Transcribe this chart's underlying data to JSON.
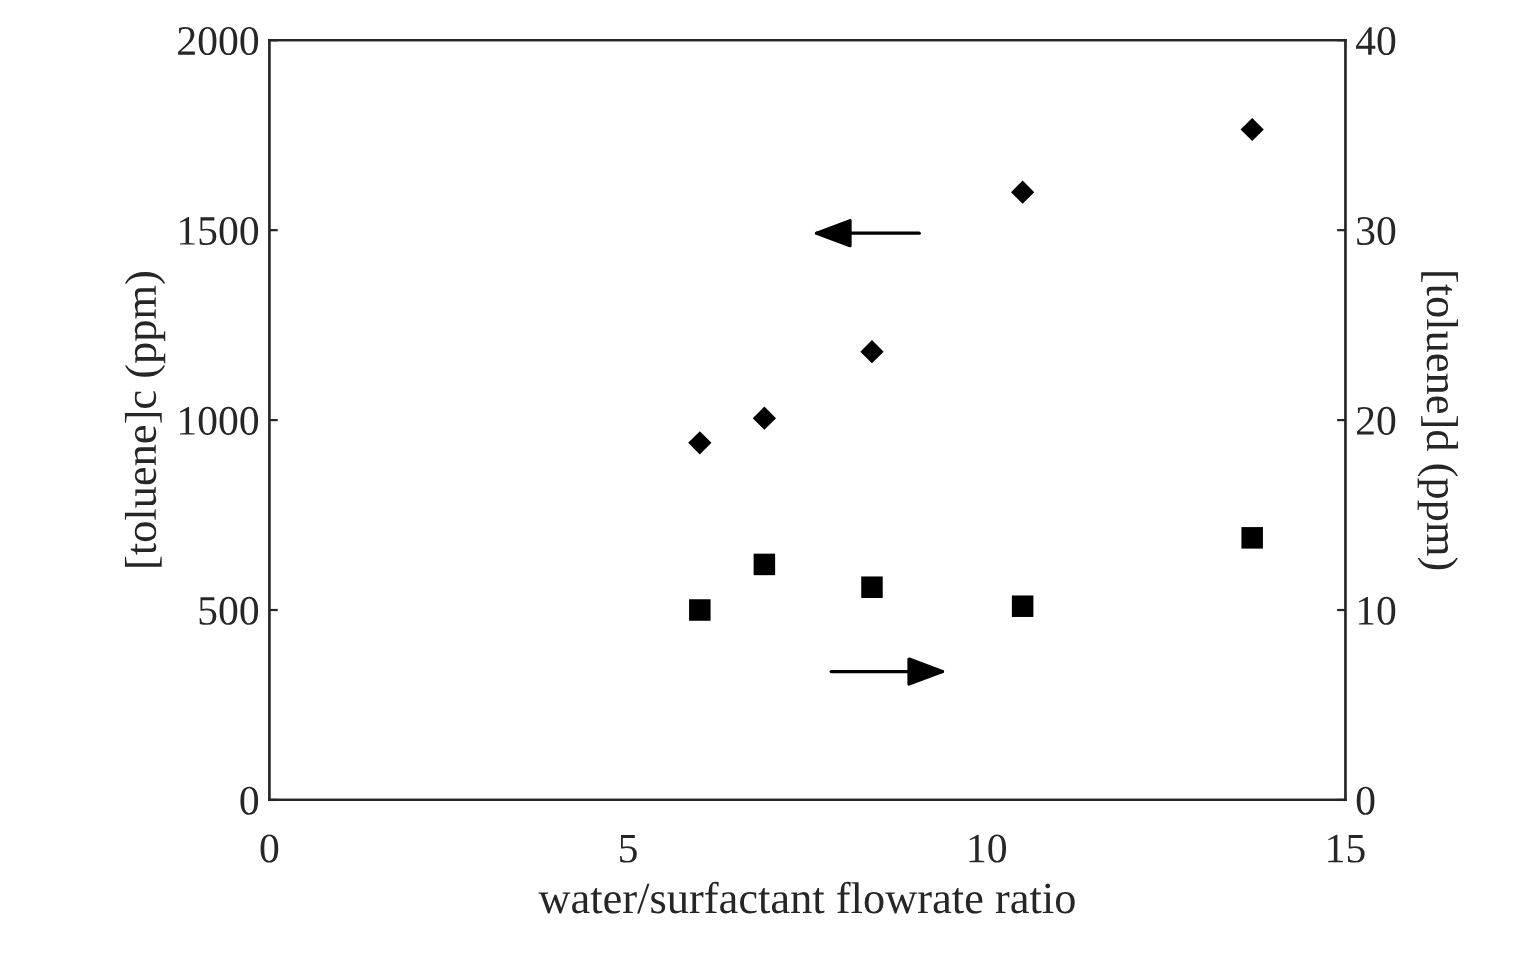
{
  "chart_data": {
    "type": "scatter",
    "xlabel": "water/surfactant flowrate ratio",
    "ylabel": "[toluene]c (ppm)",
    "y2label": "[toluene]d (ppm)",
    "x": [
      6.0,
      6.9,
      8.4,
      10.5,
      13.7
    ],
    "series": [
      {
        "color": "#000000",
        "marker": "diamond",
        "values": [
          940,
          1005,
          1180,
          1600,
          1765
        ]
      },
      {
        "color": "#000000",
        "marker": "square",
        "axis": "y2",
        "values": [
          10.0,
          12.4,
          11.2,
          10.2,
          13.8
        ]
      }
    ],
    "xlim": [
      0,
      15
    ],
    "xticks": [
      0,
      5,
      10,
      15
    ],
    "ylim": [
      0,
      2000
    ],
    "yticks": [
      0,
      500,
      1000,
      1500,
      2000
    ],
    "y2lim": [
      0,
      40
    ],
    "y2ticks": [
      0,
      10,
      20,
      30,
      40
    ],
    "grid": false,
    "legend": false
  }
}
